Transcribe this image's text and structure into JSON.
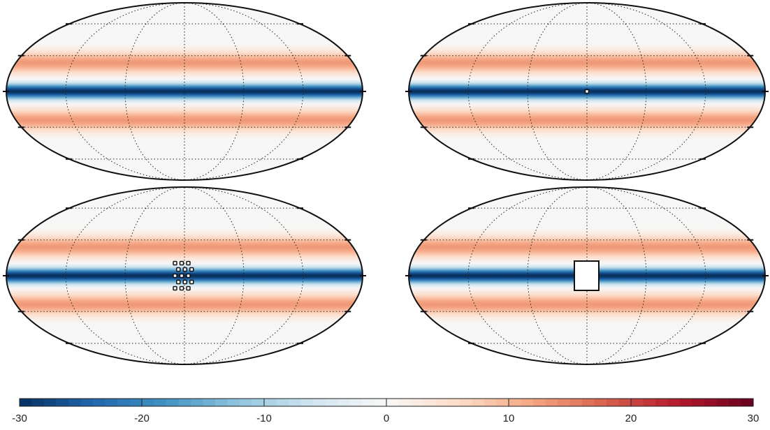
{
  "chart_data": {
    "type": "heatmap",
    "projection": "mollweide",
    "grid": true,
    "panels": [
      {
        "name": "",
        "mask": "none"
      },
      {
        "name": "",
        "mask": "single-pixel"
      },
      {
        "name": "",
        "mask": "checkerboard-pixels"
      },
      {
        "name": "",
        "mask": "rectangle"
      }
    ],
    "field": {
      "description_bands": [
        {
          "lat_center": 0,
          "value": -30
        },
        {
          "lat_center": 24,
          "value": 13
        },
        {
          "lat_center": -24,
          "value": 13
        },
        {
          "lat_center": 40,
          "value": 0
        },
        {
          "lat_center": -40,
          "value": 0
        }
      ]
    },
    "colorbar": {
      "min": -30,
      "max": 30,
      "ticks": [
        -30,
        -20,
        -10,
        0,
        10,
        20,
        30
      ],
      "tick_labels": [
        "-30",
        "-20",
        "-10",
        "0",
        "10",
        "20",
        "30"
      ],
      "steps": 60,
      "colors": [
        "#053061",
        "#2166ac",
        "#4393c3",
        "#92c5de",
        "#d1e5f0",
        "#f7f7f7",
        "#fddbc7",
        "#f4a582",
        "#d6604d",
        "#b2182b",
        "#67001f"
      ]
    }
  }
}
